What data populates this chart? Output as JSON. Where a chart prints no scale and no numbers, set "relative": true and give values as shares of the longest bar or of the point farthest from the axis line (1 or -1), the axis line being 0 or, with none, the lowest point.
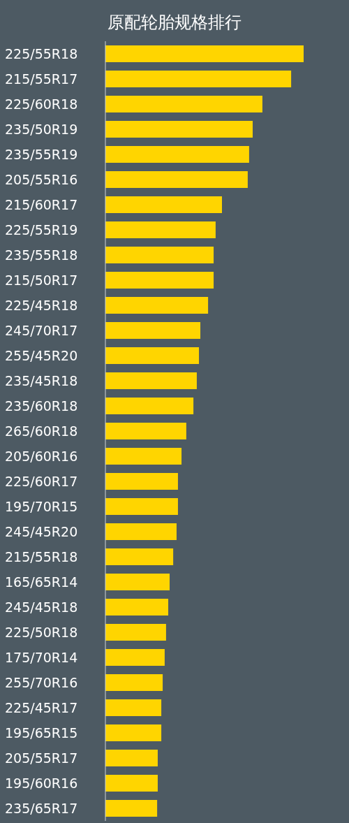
{
  "chart_data": {
    "type": "bar",
    "orientation": "horizontal",
    "relative": true,
    "title": "原配轮胎规格排行",
    "color": "#ffd500",
    "categories": [
      "225/55R18",
      "215/55R17",
      "225/60R18",
      "235/50R19",
      "235/55R19",
      "205/55R16",
      "215/60R17",
      "225/55R19",
      "235/55R18",
      "215/50R17",
      "225/45R18",
      "245/70R17",
      "255/45R20",
      "235/45R18",
      "235/60R18",
      "265/60R18",
      "205/60R16",
      "225/60R17",
      "195/70R15",
      "245/45R20",
      "215/55R18",
      "165/65R14",
      "245/45R18",
      "225/50R18",
      "175/70R14",
      "255/70R16",
      "225/45R17",
      "195/65R15",
      "205/55R17",
      "195/60R16",
      "235/65R17"
    ],
    "values": [
      1,
      0.937,
      0.792,
      0.743,
      0.725,
      0.718,
      0.588,
      0.556,
      0.546,
      0.546,
      0.518,
      0.479,
      0.472,
      0.461,
      0.444,
      0.408,
      0.384,
      0.366,
      0.366,
      0.359,
      0.342,
      0.324,
      0.317,
      0.306,
      0.299,
      0.289,
      0.282,
      0.282,
      0.264,
      0.264,
      0.261
    ]
  }
}
